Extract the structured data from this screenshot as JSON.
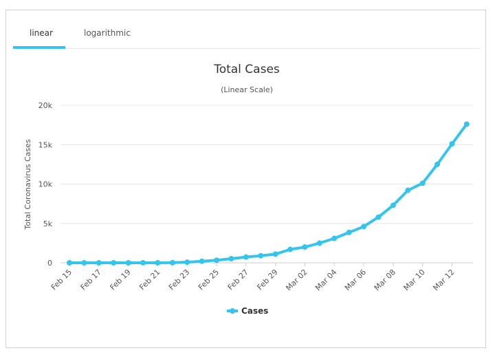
{
  "tabs": [
    {
      "label": "linear",
      "active": true
    },
    {
      "label": "logarithmic",
      "active": false
    }
  ],
  "colors": {
    "accent": "#35c4ee",
    "grid": "#e6e6e6",
    "axis": "#cccccc"
  },
  "chart_data": {
    "type": "line",
    "title": "Total Cases",
    "subtitle": "(Linear Scale)",
    "xlabel": "",
    "ylabel": "Total Coronavirus Cases",
    "ylim": [
      0,
      20000
    ],
    "y_ticks": [
      "0",
      "5k",
      "10k",
      "15k",
      "20k"
    ],
    "y_tick_values": [
      0,
      5000,
      10000,
      15000,
      20000
    ],
    "x_tick_labels": [
      "Feb 15",
      "Feb 17",
      "Feb 19",
      "Feb 21",
      "Feb 23",
      "Feb 25",
      "Feb 27",
      "Feb 29",
      "Mar 02",
      "Mar 04",
      "Mar 06",
      "Mar 08",
      "Mar 10",
      "Mar 12"
    ],
    "grid": true,
    "legend": {
      "placement": "bottom-center",
      "entries": [
        "Cases"
      ]
    },
    "series": [
      {
        "name": "Cases",
        "color": "#35c4ee",
        "values": [
          1,
          1,
          1,
          1,
          1,
          2,
          3,
          20,
          80,
          200,
          330,
          520,
          730,
          900,
          1100,
          1700,
          2000,
          2500,
          3100,
          3850,
          4600,
          5800,
          7300,
          9200,
          10100,
          12500,
          15100,
          17600
        ]
      }
    ]
  }
}
